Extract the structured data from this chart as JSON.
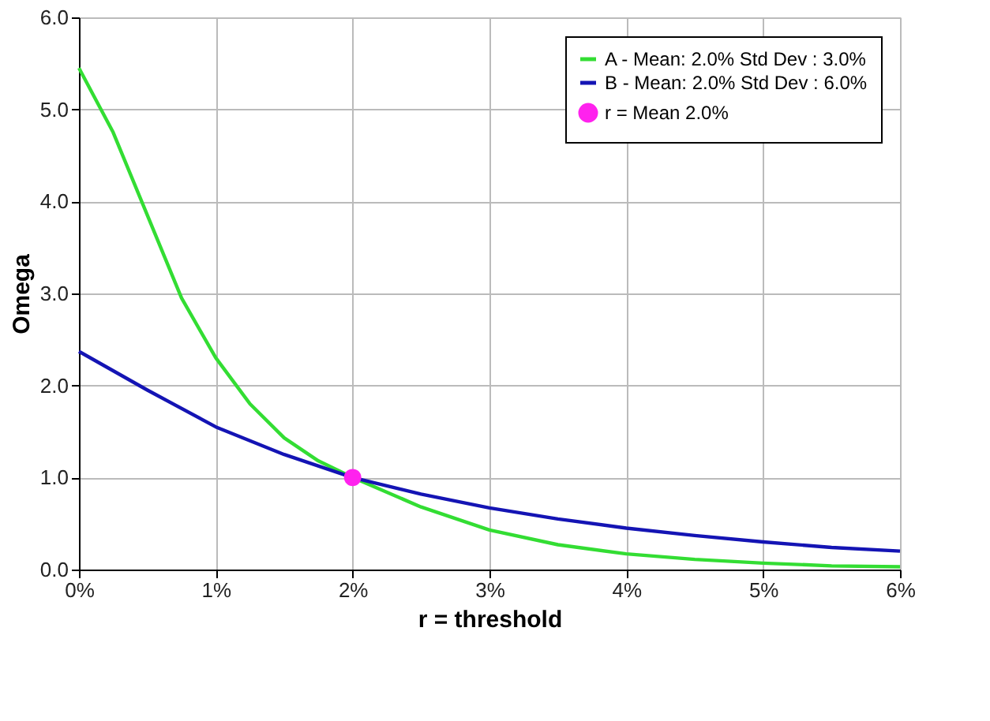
{
  "chart_data": {
    "type": "line",
    "xlabel": "r = threshold",
    "ylabel": "Omega",
    "xlim": [
      0,
      6
    ],
    "xticks": [
      {
        "value": 0,
        "label": "0%"
      },
      {
        "value": 1,
        "label": "1%"
      },
      {
        "value": 2,
        "label": "2%"
      },
      {
        "value": 3,
        "label": "3%"
      },
      {
        "value": 4,
        "label": "4%"
      },
      {
        "value": 5,
        "label": "5%"
      },
      {
        "value": 6,
        "label": "6%"
      }
    ],
    "ylim": [
      0,
      6
    ],
    "yticks": [
      {
        "value": 0,
        "label": "0.0"
      },
      {
        "value": 1,
        "label": "1.0"
      },
      {
        "value": 2,
        "label": "2.0"
      },
      {
        "value": 3,
        "label": "3.0"
      },
      {
        "value": 4,
        "label": "4.0"
      },
      {
        "value": 5,
        "label": "5.0"
      },
      {
        "value": 6,
        "label": "6.0"
      }
    ],
    "grid": true,
    "legend": "top right",
    "line_style": "solid",
    "series": [
      {
        "name": "A - Mean: 2.0% Std Dev : 3.0%",
        "color": "#33dd33",
        "x": [
          0,
          0.25,
          0.5,
          0.75,
          1,
          1.25,
          1.5,
          1.75,
          2,
          2.5,
          3,
          3.5,
          4,
          4.5,
          5,
          5.5,
          6
        ],
        "values": [
          5.45,
          4.75,
          3.85,
          2.95,
          2.3,
          1.8,
          1.43,
          1.18,
          1.0,
          0.68,
          0.43,
          0.27,
          0.17,
          0.11,
          0.07,
          0.04,
          0.03
        ]
      },
      {
        "name": "B - Mean: 2.0% Std Dev : 6.0%",
        "color": "#1414b4",
        "x": [
          0,
          0.5,
          1,
          1.5,
          2,
          2.5,
          3,
          3.5,
          4,
          4.5,
          5,
          5.5,
          6
        ],
        "values": [
          2.37,
          1.95,
          1.55,
          1.25,
          1.0,
          0.82,
          0.67,
          0.55,
          0.45,
          0.37,
          0.3,
          0.24,
          0.2
        ]
      },
      {
        "name": "r = Mean  2.0%",
        "type": "scatter",
        "marker": "circle",
        "color": "#ff22ee",
        "x": [
          2
        ],
        "values": [
          1.0
        ]
      }
    ]
  }
}
